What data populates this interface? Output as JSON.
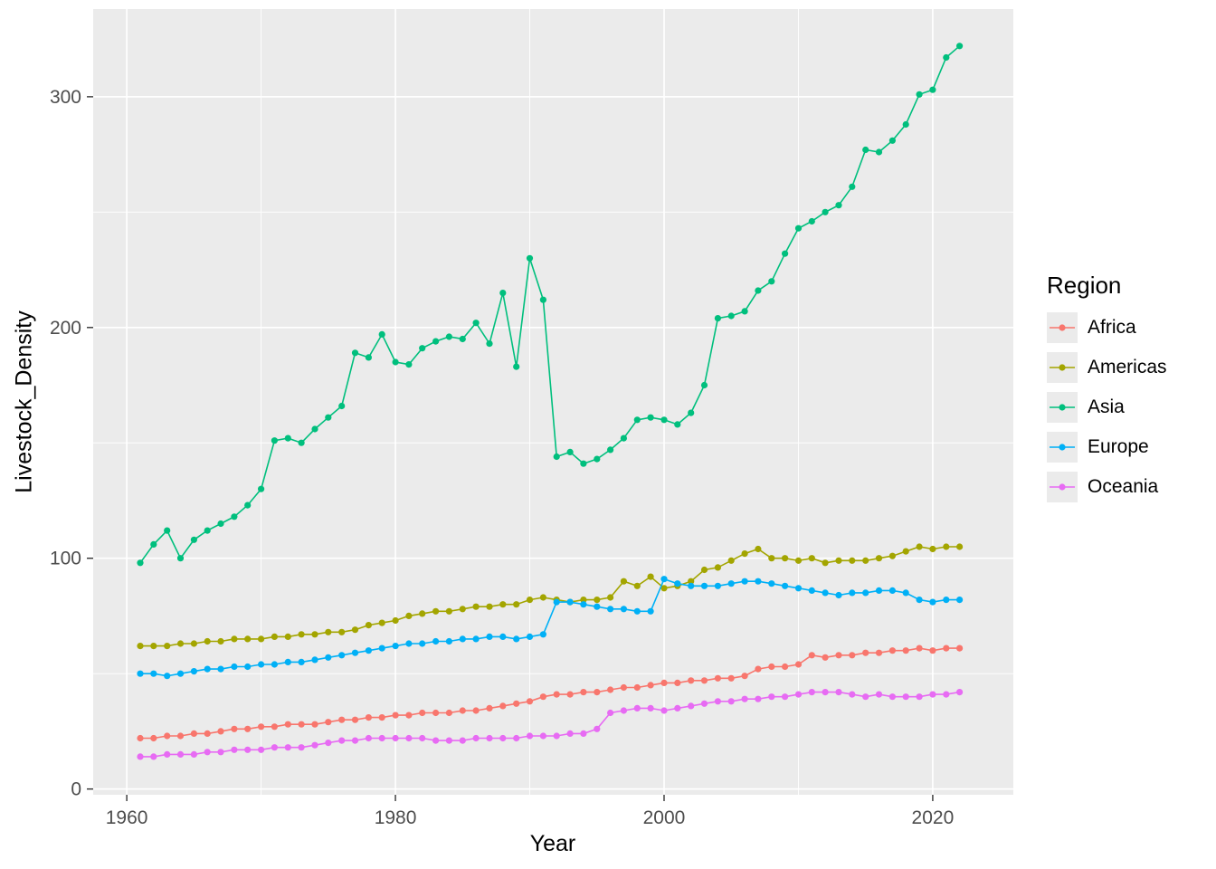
{
  "chart_data": {
    "type": "line",
    "title": "",
    "xlabel": "Year",
    "ylabel": "Livestock_Density",
    "legend_title": "Region",
    "legend_position": "right",
    "grid": true,
    "panel_background": "#EBEBEB",
    "gridline_color": "#FFFFFF",
    "tick_label_color": "#4D4D4D",
    "x": {
      "start": 1961,
      "end": 2022,
      "step": 1
    },
    "xlim": [
      1957.5,
      2026
    ],
    "ylim": [
      -2.5,
      338
    ],
    "x_ticks": [
      1960,
      1980,
      2000,
      2020
    ],
    "x_minor_ticks": [
      1970,
      1990,
      2010
    ],
    "y_ticks": [
      0,
      100,
      200,
      300
    ],
    "y_minor_ticks": [
      50,
      150,
      250
    ],
    "series": [
      {
        "name": "Africa",
        "color": "#F8766D",
        "values": [
          22,
          22,
          23,
          23,
          24,
          24,
          25,
          26,
          26,
          27,
          27,
          28,
          28,
          28,
          29,
          30,
          30,
          31,
          31,
          32,
          32,
          33,
          33,
          33,
          34,
          34,
          35,
          36,
          37,
          38,
          40,
          41,
          41,
          42,
          42,
          43,
          44,
          44,
          45,
          46,
          46,
          47,
          47,
          48,
          48,
          49,
          52,
          53,
          53,
          54,
          58,
          57,
          58,
          58,
          59,
          59,
          60,
          60,
          61,
          60,
          61,
          61
        ]
      },
      {
        "name": "Americas",
        "color": "#A3A500",
        "values": [
          62,
          62,
          62,
          63,
          63,
          64,
          64,
          65,
          65,
          65,
          66,
          66,
          67,
          67,
          68,
          68,
          69,
          71,
          72,
          73,
          75,
          76,
          77,
          77,
          78,
          79,
          79,
          80,
          80,
          82,
          83,
          82,
          81,
          82,
          82,
          83,
          90,
          88,
          92,
          87,
          88,
          90,
          95,
          96,
          99,
          102,
          104,
          100,
          100,
          99,
          100,
          98,
          99,
          99,
          99,
          100,
          101,
          103,
          105,
          104,
          105,
          105
        ]
      },
      {
        "name": "Asia",
        "color": "#00BF7D",
        "values": [
          98,
          106,
          112,
          100,
          108,
          112,
          115,
          118,
          123,
          130,
          151,
          152,
          150,
          156,
          161,
          166,
          189,
          187,
          197,
          185,
          184,
          191,
          194,
          196,
          195,
          202,
          193,
          215,
          183,
          230,
          212,
          144,
          146,
          141,
          143,
          147,
          152,
          160,
          161,
          160,
          158,
          163,
          175,
          204,
          205,
          207,
          216,
          220,
          232,
          243,
          246,
          250,
          253,
          261,
          277,
          276,
          281,
          288,
          301,
          303,
          317,
          322
        ]
      },
      {
        "name": "Europe",
        "color": "#00B0F6",
        "values": [
          50,
          50,
          49,
          50,
          51,
          52,
          52,
          53,
          53,
          54,
          54,
          55,
          55,
          56,
          57,
          58,
          59,
          60,
          61,
          62,
          63,
          63,
          64,
          64,
          65,
          65,
          66,
          66,
          65,
          66,
          67,
          81,
          81,
          80,
          79,
          78,
          78,
          77,
          77,
          91,
          89,
          88,
          88,
          88,
          89,
          90,
          90,
          89,
          88,
          87,
          86,
          85,
          84,
          85,
          85,
          86,
          86,
          85,
          82,
          81,
          82,
          82
        ]
      },
      {
        "name": "Oceania",
        "color": "#E76BF3",
        "values": [
          14,
          14,
          15,
          15,
          15,
          16,
          16,
          17,
          17,
          17,
          18,
          18,
          18,
          19,
          20,
          21,
          21,
          22,
          22,
          22,
          22,
          22,
          21,
          21,
          21,
          22,
          22,
          22,
          22,
          23,
          23,
          23,
          24,
          24,
          26,
          33,
          34,
          35,
          35,
          34,
          35,
          36,
          37,
          38,
          38,
          39,
          39,
          40,
          40,
          41,
          42,
          42,
          42,
          41,
          40,
          41,
          40,
          40,
          40,
          41,
          41,
          42
        ]
      }
    ]
  }
}
